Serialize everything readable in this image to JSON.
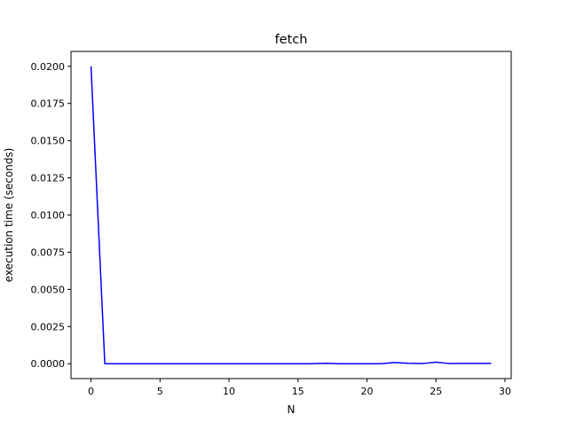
{
  "chart_data": {
    "type": "line",
    "title": "fetch",
    "xlabel": "N",
    "ylabel": "execution time (seconds)",
    "xlim": [
      -1.45,
      30.45
    ],
    "ylim": [
      -0.001,
      0.021
    ],
    "x_ticks": [
      0,
      5,
      10,
      15,
      20,
      25,
      30
    ],
    "x_tick_labels": [
      "0",
      "5",
      "10",
      "15",
      "20",
      "25",
      "30"
    ],
    "y_ticks": [
      0.0,
      0.0025,
      0.005,
      0.0075,
      0.01,
      0.0125,
      0.015,
      0.0175,
      0.02
    ],
    "y_tick_labels": [
      "0.0000",
      "0.0025",
      "0.0050",
      "0.0075",
      "0.0100",
      "0.0125",
      "0.0150",
      "0.0175",
      "0.0200"
    ],
    "grid": false,
    "x": [
      0,
      1,
      2,
      3,
      4,
      5,
      6,
      7,
      8,
      9,
      10,
      11,
      12,
      13,
      14,
      15,
      16,
      17,
      18,
      19,
      20,
      21,
      22,
      23,
      24,
      25,
      26,
      27,
      28,
      29
    ],
    "series": [
      {
        "color": "#0000ff",
        "values": [
          0.02,
          0.0,
          0.0,
          0.0,
          0.0,
          0.0,
          0.0,
          0.0,
          0.0,
          0.0,
          0.0,
          0.0,
          0.0,
          0.0,
          0.0,
          0.0,
          0.0,
          3e-05,
          0.0,
          0.0,
          0.0,
          0.0,
          8e-05,
          3e-05,
          1e-05,
          0.0001,
          1e-05,
          2e-05,
          2e-05,
          2e-05
        ]
      }
    ]
  }
}
